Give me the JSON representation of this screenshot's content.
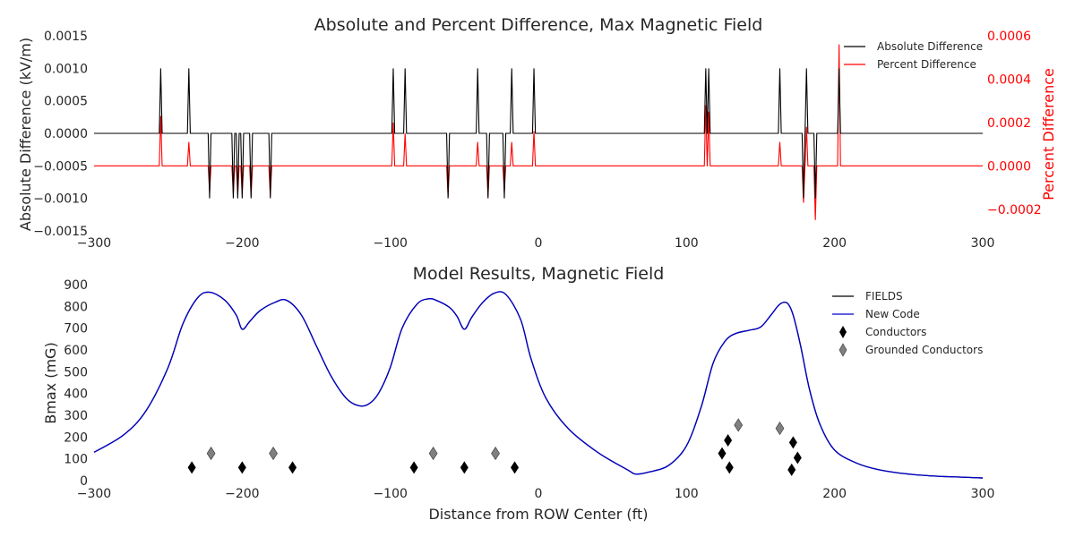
{
  "chart_data": [
    {
      "type": "line",
      "title": "Absolute and Percent Difference, Max Magnetic Field",
      "xlabel": "",
      "ylabel": "Absolute Difference (kV/m)",
      "y2label": "Percent Difference",
      "xlim": [
        -300,
        300
      ],
      "ylim": [
        -0.0015,
        0.0015
      ],
      "y2lim": [
        -0.0003,
        0.0006
      ],
      "xticks": [
        "−300",
        "−200",
        "−100",
        "0",
        "100",
        "200",
        "300"
      ],
      "xtick_values": [
        -300,
        -200,
        -100,
        0,
        100,
        200,
        300
      ],
      "yticks": [
        "−0.0015",
        "−0.0010",
        "−0.0005",
        "0.0000",
        "0.0005",
        "0.0010",
        "0.0015"
      ],
      "ytick_values": [
        -0.0015,
        -0.001,
        -0.0005,
        0,
        0.0005,
        0.001,
        0.0015
      ],
      "y2ticks": [
        "−0.0002",
        "0.0000",
        "0.0002",
        "0.0004",
        "0.0006"
      ],
      "y2tick_values": [
        -0.0002,
        0,
        0.0002,
        0.0004,
        0.0006
      ],
      "grid": false,
      "legend_position": "top-right",
      "series": [
        {
          "name": "Absolute Difference",
          "axis": "left",
          "color": "#000000",
          "spikes": [
            {
              "x": -255,
              "y": 0.001
            },
            {
              "x": -236,
              "y": 0.001
            },
            {
              "x": -222,
              "y": -0.001
            },
            {
              "x": -206,
              "y": -0.001
            },
            {
              "x": -203,
              "y": -0.001
            },
            {
              "x": -200,
              "y": -0.001
            },
            {
              "x": -194,
              "y": -0.001
            },
            {
              "x": -181,
              "y": -0.001
            },
            {
              "x": -98,
              "y": 0.001
            },
            {
              "x": -90,
              "y": 0.001
            },
            {
              "x": -61,
              "y": -0.001
            },
            {
              "x": -41,
              "y": 0.001
            },
            {
              "x": -34,
              "y": -0.001
            },
            {
              "x": -23,
              "y": -0.001
            },
            {
              "x": -18,
              "y": 0.001
            },
            {
              "x": -3,
              "y": 0.001
            },
            {
              "x": 113,
              "y": 0.001
            },
            {
              "x": 115,
              "y": 0.001
            },
            {
              "x": 163,
              "y": 0.001
            },
            {
              "x": 179,
              "y": -0.001
            },
            {
              "x": 181,
              "y": 0.001
            },
            {
              "x": 187,
              "y": -0.001
            },
            {
              "x": 203,
              "y": 0.001
            }
          ]
        },
        {
          "name": "Percent Difference",
          "axis": "right",
          "color": "#ff0000",
          "spikes": [
            {
              "x": -255,
              "y": 0.00023
            },
            {
              "x": -236,
              "y": 0.00011
            },
            {
              "x": -222,
              "y": -0.00012
            },
            {
              "x": -206,
              "y": -0.00013
            },
            {
              "x": -203,
              "y": -0.00013
            },
            {
              "x": -200,
              "y": -0.00013
            },
            {
              "x": -194,
              "y": -0.00014
            },
            {
              "x": -181,
              "y": -0.00014
            },
            {
              "x": -98,
              "y": 0.0002
            },
            {
              "x": -90,
              "y": 0.00015
            },
            {
              "x": -61,
              "y": -0.00014
            },
            {
              "x": -41,
              "y": 0.00011
            },
            {
              "x": -34,
              "y": -0.00014
            },
            {
              "x": -23,
              "y": -0.00012
            },
            {
              "x": -18,
              "y": 0.00011
            },
            {
              "x": -3,
              "y": 0.00016
            },
            {
              "x": 113,
              "y": 0.00028
            },
            {
              "x": 115,
              "y": 0.00025
            },
            {
              "x": 163,
              "y": 0.00011
            },
            {
              "x": 179,
              "y": -0.00017
            },
            {
              "x": 181,
              "y": 0.00018
            },
            {
              "x": 187,
              "y": -0.00025
            },
            {
              "x": 203,
              "y": 0.00056
            }
          ]
        }
      ]
    },
    {
      "type": "line",
      "title": "Model Results, Magnetic Field",
      "xlabel": "Distance from ROW Center (ft)",
      "ylabel": "Bmax (mG)",
      "xlim": [
        -300,
        300
      ],
      "ylim": [
        0,
        900
      ],
      "xticks": [
        "−300",
        "−200",
        "−100",
        "0",
        "100",
        "200",
        "300"
      ],
      "xtick_values": [
        -300,
        -200,
        -100,
        0,
        100,
        200,
        300
      ],
      "yticks": [
        "0",
        "100",
        "200",
        "300",
        "400",
        "500",
        "600",
        "700",
        "800",
        "900"
      ],
      "ytick_values": [
        0,
        100,
        200,
        300,
        400,
        500,
        600,
        700,
        800,
        900
      ],
      "grid": false,
      "legend_position": "top-right",
      "series": [
        {
          "name": "FIELDS",
          "color": "#000000",
          "x": [
            -300,
            -280,
            -265,
            -250,
            -240,
            -230,
            -222,
            -212,
            -204,
            -200,
            -195,
            -188,
            -178,
            -170,
            -160,
            -150,
            -140,
            -130,
            -122,
            -115,
            -108,
            -100,
            -92,
            -82,
            -74,
            -68,
            -60,
            -55,
            -50,
            -45,
            -38,
            -30,
            -22,
            -12,
            -5,
            5,
            20,
            40,
            60,
            66,
            75,
            88,
            100,
            110,
            118,
            126,
            133,
            142,
            150,
            157,
            163,
            168,
            172,
            177,
            183,
            190,
            200,
            215,
            230,
            250,
            270,
            290,
            300
          ],
          "y": [
            130,
            210,
            320,
            520,
            720,
            840,
            865,
            830,
            760,
            695,
            730,
            780,
            818,
            828,
            760,
            620,
            480,
            380,
            345,
            350,
            400,
            520,
            700,
            810,
            835,
            825,
            795,
            755,
            695,
            750,
            815,
            860,
            855,
            740,
            560,
            380,
            240,
            130,
            50,
            30,
            40,
            70,
            160,
            340,
            540,
            640,
            675,
            690,
            705,
            760,
            810,
            815,
            760,
            620,
            420,
            260,
            140,
            80,
            50,
            30,
            20,
            15,
            12
          ]
        },
        {
          "name": "New Code",
          "color": "#0000cc",
          "x": [
            -300,
            -280,
            -265,
            -250,
            -240,
            -230,
            -222,
            -212,
            -204,
            -200,
            -195,
            -188,
            -178,
            -170,
            -160,
            -150,
            -140,
            -130,
            -122,
            -115,
            -108,
            -100,
            -92,
            -82,
            -74,
            -68,
            -60,
            -55,
            -50,
            -45,
            -38,
            -30,
            -22,
            -12,
            -5,
            5,
            20,
            40,
            60,
            66,
            75,
            88,
            100,
            110,
            118,
            126,
            133,
            142,
            150,
            157,
            163,
            168,
            172,
            177,
            183,
            190,
            200,
            215,
            230,
            250,
            270,
            290,
            300
          ],
          "y": [
            130,
            210,
            320,
            520,
            720,
            840,
            865,
            830,
            760,
            695,
            730,
            780,
            818,
            828,
            760,
            620,
            480,
            380,
            345,
            350,
            400,
            520,
            700,
            810,
            835,
            825,
            795,
            755,
            695,
            750,
            815,
            860,
            855,
            740,
            560,
            380,
            240,
            130,
            50,
            30,
            40,
            70,
            160,
            340,
            540,
            640,
            675,
            690,
            705,
            760,
            810,
            815,
            760,
            620,
            420,
            260,
            140,
            80,
            50,
            30,
            20,
            15,
            12
          ]
        },
        {
          "name": "Conductors",
          "marker": "diamond",
          "color": "#000000",
          "x": [
            -234,
            -200,
            -166,
            -84,
            -50,
            -16,
            124,
            128,
            129,
            171,
            172,
            175
          ],
          "y": [
            60,
            60,
            60,
            60,
            60,
            60,
            125,
            185,
            60,
            50,
            175,
            105
          ]
        },
        {
          "name": "Grounded Conductors",
          "marker": "diamond",
          "color": "#808080",
          "x": [
            -221,
            -179,
            -71,
            -29,
            135,
            163
          ],
          "y": [
            125,
            125,
            125,
            125,
            255,
            240
          ]
        }
      ]
    }
  ]
}
